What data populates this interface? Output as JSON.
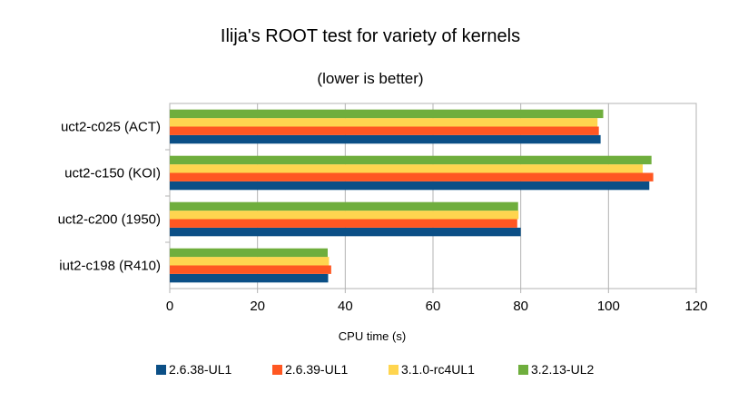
{
  "chart_data": {
    "type": "bar",
    "orientation": "horizontal",
    "title": "Ilija's ROOT test for variety of kernels",
    "subtitle": "(lower is better)",
    "xlabel": "CPU time (s)",
    "ylabel": "",
    "xlim": [
      0,
      120
    ],
    "xticks": [
      0,
      20,
      40,
      60,
      80,
      100,
      120
    ],
    "grid": true,
    "legend_position": "bottom",
    "categories": [
      "uct2-c025 (ACT)",
      "uct2-c150 (KOI)",
      "uct2-c200 (1950)",
      "iut2-c198 (R410)"
    ],
    "series": [
      {
        "name": "2.6.38-UL1",
        "color": "#0b4f86",
        "values": [
          98.2,
          109.3,
          80.0,
          36.1
        ]
      },
      {
        "name": "2.6.39-UL1",
        "color": "#ff5722",
        "values": [
          97.8,
          110.2,
          79.2,
          36.8
        ]
      },
      {
        "name": "3.1.0-rc4UL1",
        "color": "#ffd54f",
        "values": [
          97.5,
          107.8,
          79.5,
          36.3
        ]
      },
      {
        "name": "3.2.13-UL2",
        "color": "#6fae3d",
        "values": [
          98.8,
          109.8,
          79.4,
          36.0
        ]
      }
    ]
  }
}
